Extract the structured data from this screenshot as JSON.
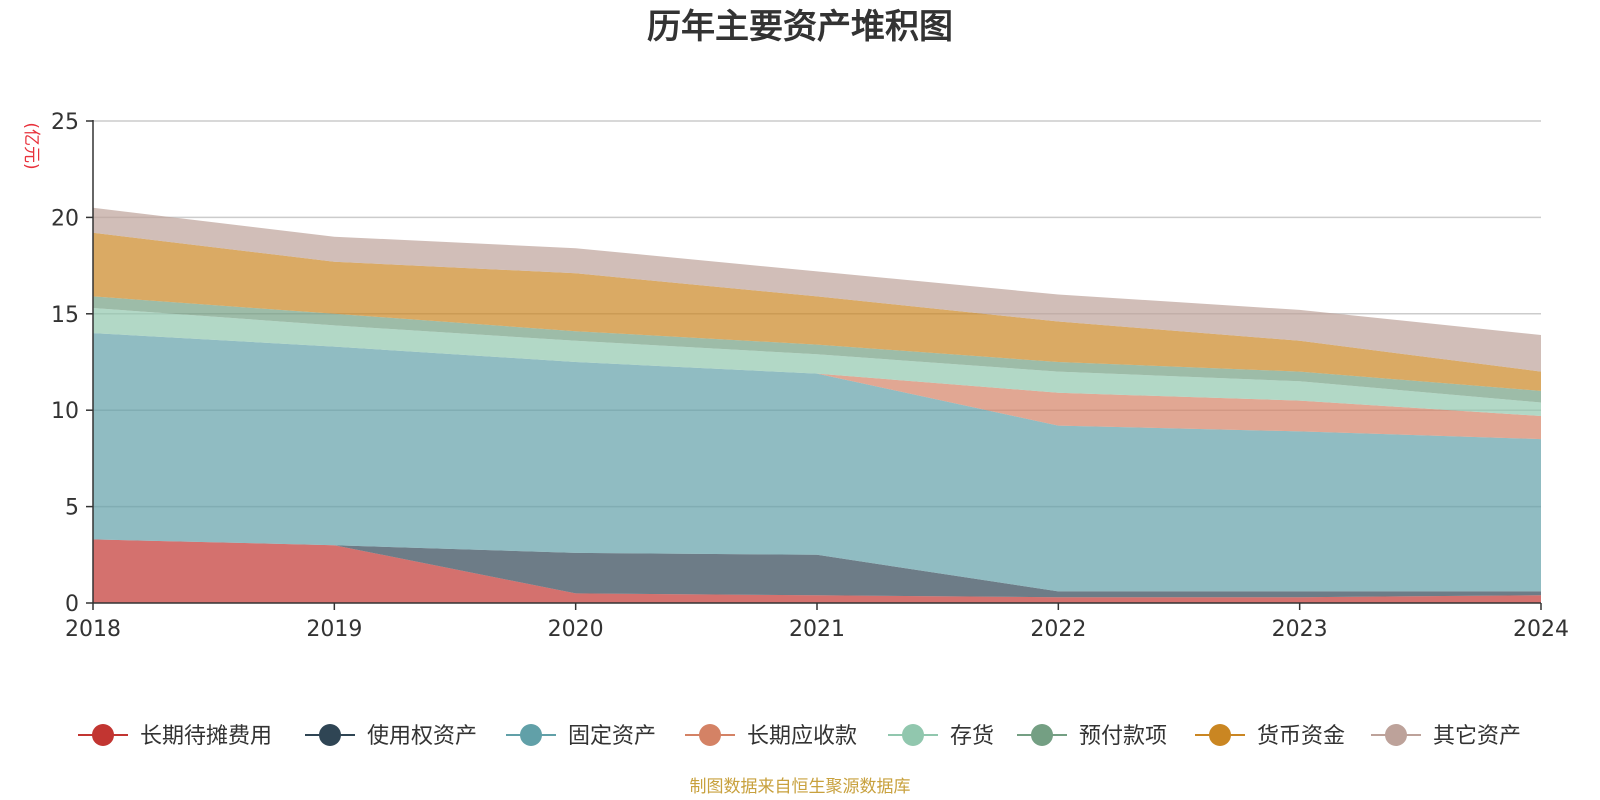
{
  "chart_data": {
    "type": "area",
    "stacked": true,
    "title": "历年主要资产堆积图",
    "unit_label": "(亿元)",
    "source_note": "制图数据来自恒生聚源数据库",
    "x": [
      "2018",
      "2019",
      "2020",
      "2021",
      "2022",
      "2023",
      "2024"
    ],
    "ylim": [
      0,
      25
    ],
    "yticks": [
      0,
      5,
      10,
      15,
      20,
      25
    ],
    "grid": true,
    "legend_position": "bottom",
    "series": [
      {
        "name": "长期待摊费用",
        "color": "#c23531",
        "values": [
          3.3,
          3.0,
          0.5,
          0.4,
          0.3,
          0.3,
          0.4
        ]
      },
      {
        "name": "使用权资产",
        "color": "#2f4554",
        "values": [
          0.0,
          0.0,
          2.1,
          2.1,
          0.3,
          0.3,
          0.2
        ]
      },
      {
        "name": "固定资产",
        "color": "#61a0a8",
        "values": [
          10.7,
          10.3,
          9.9,
          9.4,
          8.6,
          8.3,
          7.9
        ]
      },
      {
        "name": "长期应收款",
        "color": "#d48265",
        "values": [
          0.0,
          0.0,
          0.0,
          0.0,
          1.7,
          1.6,
          1.2
        ]
      },
      {
        "name": "存货",
        "color": "#91c7ae",
        "values": [
          1.3,
          1.1,
          1.1,
          1.0,
          1.1,
          1.0,
          0.7
        ]
      },
      {
        "name": "预付款项",
        "color": "#749f83",
        "values": [
          0.6,
          0.6,
          0.5,
          0.5,
          0.5,
          0.5,
          0.6
        ]
      },
      {
        "name": "货币资金",
        "color": "#ca8622",
        "values": [
          3.3,
          2.7,
          3.0,
          2.5,
          2.1,
          1.6,
          1.0
        ]
      },
      {
        "name": "其它资产",
        "color": "#bda29a",
        "values": [
          1.3,
          1.3,
          1.3,
          1.3,
          1.4,
          1.6,
          1.9
        ]
      }
    ]
  }
}
